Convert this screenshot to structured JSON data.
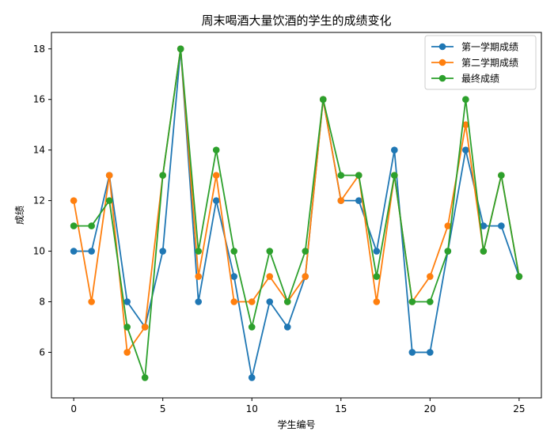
{
  "chart_data": {
    "type": "line",
    "title": "周末喝酒大量饮酒的学生的成绩变化",
    "xlabel": "学生编号",
    "ylabel": "成绩",
    "xlim": [
      -1.25,
      26.25
    ],
    "ylim": [
      4.2,
      18.65
    ],
    "xticks": [
      0,
      5,
      10,
      15,
      20,
      25
    ],
    "yticks": [
      6,
      8,
      10,
      12,
      14,
      16,
      18
    ],
    "grid": false,
    "legend_position": "top-right",
    "marker": "circle",
    "x": [
      0,
      1,
      2,
      3,
      4,
      5,
      6,
      7,
      8,
      9,
      10,
      11,
      12,
      13,
      14,
      15,
      16,
      17,
      18,
      19,
      20,
      21,
      22,
      23,
      24,
      25
    ],
    "series": [
      {
        "name": "第一学期成绩",
        "color": "#1f77b4",
        "values": [
          10,
          10,
          13,
          8,
          7,
          10,
          18,
          8,
          12,
          9,
          5,
          8,
          7,
          9,
          16,
          12,
          12,
          10,
          14,
          6,
          6,
          10,
          14,
          11,
          11,
          9
        ]
      },
      {
        "name": "第二学期成绩",
        "color": "#ff7f0e",
        "values": [
          12,
          8,
          13,
          6,
          7,
          13,
          18,
          9,
          13,
          8,
          8,
          9,
          8,
          9,
          16,
          12,
          13,
          8,
          13,
          8,
          9,
          11,
          15,
          10,
          13,
          9
        ]
      },
      {
        "name": "最终成绩",
        "color": "#2ca02c",
        "values": [
          11,
          11,
          12,
          7,
          5,
          13,
          18,
          10,
          14,
          10,
          7,
          10,
          8,
          10,
          16,
          13,
          13,
          9,
          13,
          8,
          8,
          10,
          16,
          10,
          13,
          9
        ]
      }
    ]
  }
}
